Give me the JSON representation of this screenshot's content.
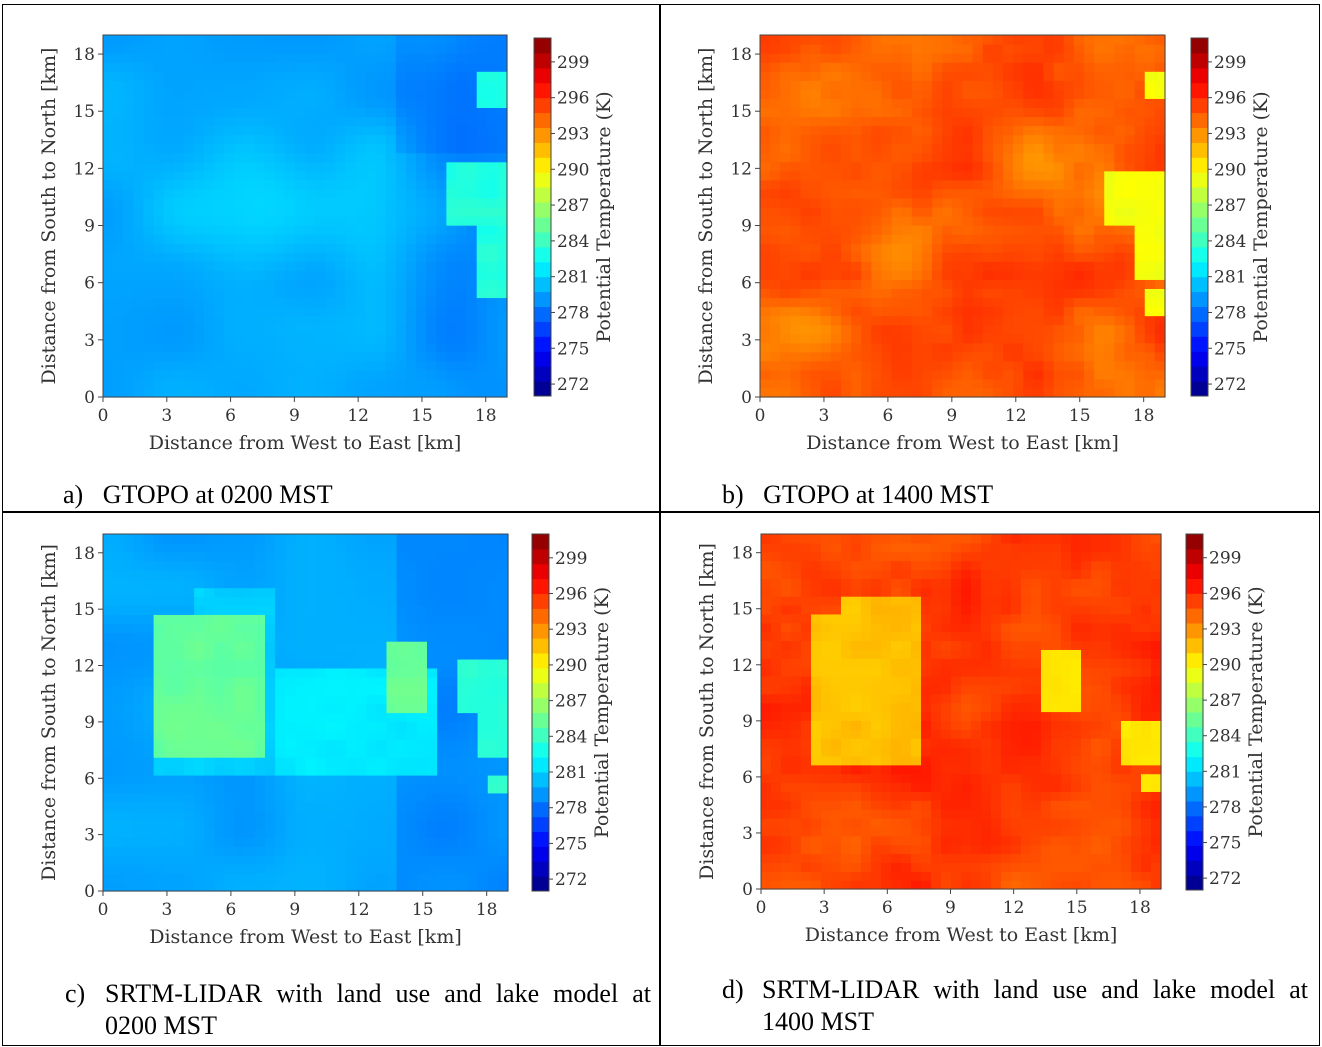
{
  "figure": {
    "panels": [
      {
        "id": "a",
        "caption_letter": "a)",
        "caption_text": "GTOPO at 0200 MST",
        "scene": "night_gtopo"
      },
      {
        "id": "b",
        "caption_letter": "b)",
        "caption_text": "GTOPO at 1400 MST",
        "scene": "day_gtopo"
      },
      {
        "id": "c",
        "caption_letter": "c)",
        "caption_text": "SRTM-LIDAR with land use and lake model at 0200 MST",
        "scene": "night_srtm"
      },
      {
        "id": "d",
        "caption_letter": "d)",
        "caption_text": "SRTM-LIDAR with land use and lake model at 1400 MST",
        "scene": "day_srtm"
      }
    ]
  },
  "chart_data": [
    {
      "type": "heatmap",
      "panel": "a",
      "xlabel": "Distance from West to East [km]",
      "ylabel": "Distance from South to North [km]",
      "colorbar_label": "Potential Temperature (K)",
      "xlim": [
        0,
        19
      ],
      "ylim": [
        0,
        19
      ],
      "x_ticks": [
        0,
        3,
        6,
        9,
        12,
        15,
        18
      ],
      "y_ticks": [
        0,
        3,
        6,
        9,
        12,
        15,
        18
      ],
      "colorbar_ticks": [
        272,
        275,
        278,
        281,
        284,
        287,
        290,
        293,
        296,
        299
      ],
      "colormap": "jet",
      "value_range_k": [
        278,
        285
      ]
    },
    {
      "type": "heatmap",
      "panel": "b",
      "xlabel": "Distance from West to East [km]",
      "ylabel": "Distance from South to North [km]",
      "colorbar_label": "Potential Temperature (K)",
      "xlim": [
        0,
        19
      ],
      "ylim": [
        0,
        19
      ],
      "x_ticks": [
        0,
        3,
        6,
        9,
        12,
        15,
        18
      ],
      "y_ticks": [
        0,
        3,
        6,
        9,
        12,
        15,
        18
      ],
      "colorbar_ticks": [
        272,
        275,
        278,
        281,
        284,
        287,
        290,
        293,
        296,
        299
      ],
      "colormap": "jet",
      "value_range_k": [
        289,
        298
      ]
    },
    {
      "type": "heatmap",
      "panel": "c",
      "xlabel": "Distance from West to East [km]",
      "ylabel": "Distance from South to North [km]",
      "colorbar_label": "Potential Temperature (K)",
      "xlim": [
        0,
        19
      ],
      "ylim": [
        0,
        19
      ],
      "x_ticks": [
        0,
        3,
        6,
        9,
        12,
        15,
        18
      ],
      "y_ticks": [
        0,
        3,
        6,
        9,
        12,
        15,
        18
      ],
      "colorbar_ticks": [
        272,
        275,
        278,
        281,
        284,
        287,
        290,
        293,
        296,
        299
      ],
      "colormap": "jet",
      "value_range_k": [
        278,
        286
      ]
    },
    {
      "type": "heatmap",
      "panel": "d",
      "xlabel": "Distance from West to East [km]",
      "ylabel": "Distance from South to North [km]",
      "colorbar_label": "Potential Temperature (K)",
      "xlim": [
        0,
        19
      ],
      "ylim": [
        0,
        19
      ],
      "x_ticks": [
        0,
        3,
        6,
        9,
        12,
        15,
        18
      ],
      "y_ticks": [
        0,
        3,
        6,
        9,
        12,
        15,
        18
      ],
      "colorbar_ticks": [
        272,
        275,
        278,
        281,
        284,
        287,
        290,
        293,
        296,
        299
      ],
      "colormap": "jet",
      "value_range_k": [
        290,
        298
      ]
    }
  ]
}
